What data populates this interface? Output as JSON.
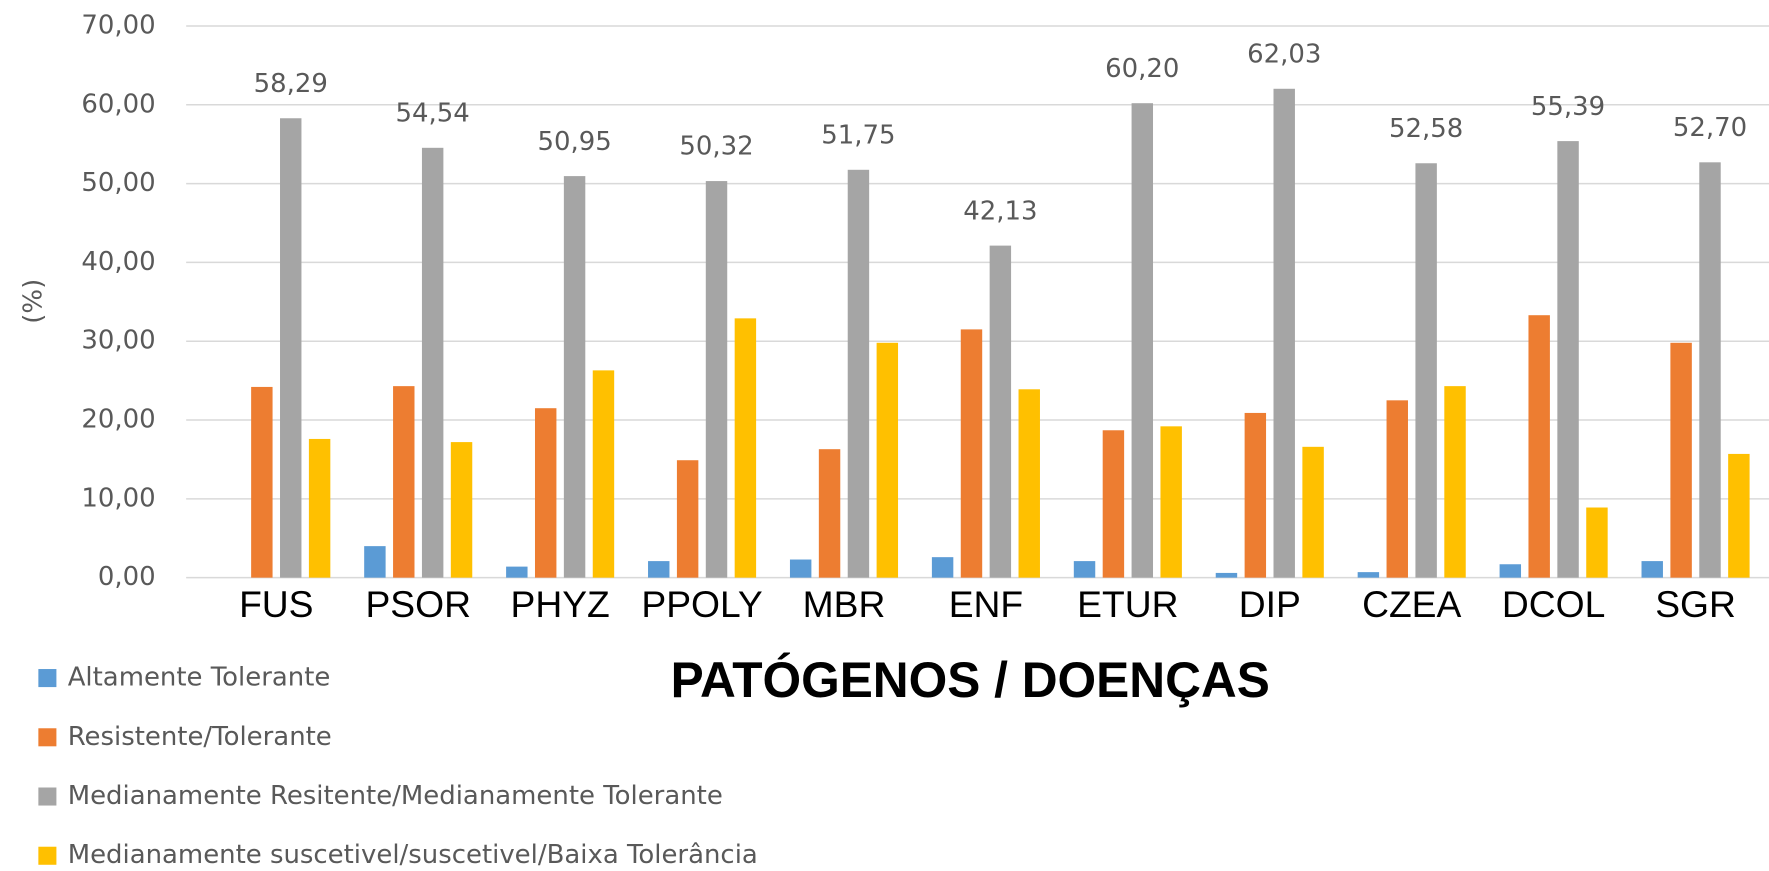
{
  "chart_data": {
    "type": "bar",
    "x_label": "PATÓGENOS / DOENÇAS",
    "y_label": "(%)",
    "categories": [
      "FUS",
      "PSOR",
      "PHYZ",
      "PPOLY",
      "MBR",
      "ENF",
      "ETUR",
      "DIP",
      "CZEA",
      "DCOL",
      "SGR"
    ],
    "series": [
      {
        "name": "Altamente Tolerante",
        "color": "#5b9bd5",
        "values": [
          0,
          4.0,
          1.4,
          2.1,
          2.3,
          2.6,
          2.1,
          0.6,
          0.7,
          1.7,
          2.1
        ]
      },
      {
        "name": "Resistente/Tolerante",
        "color": "#ed7d31",
        "values": [
          24.2,
          24.3,
          21.5,
          14.9,
          16.3,
          31.5,
          18.7,
          20.9,
          22.5,
          33.3,
          29.8
        ]
      },
      {
        "name": "Medianamente Resitente/Medianamente Tolerante",
        "color": "#a5a5a5",
        "values": [
          58.29,
          54.54,
          50.95,
          50.32,
          51.75,
          42.13,
          60.2,
          62.03,
          52.58,
          55.39,
          52.7
        ],
        "value_labels": [
          "58,29",
          "54,54",
          "50,95",
          "50,32",
          "51,75",
          "42,13",
          "60,20",
          "62,03",
          "52,58",
          "55,39",
          "52,70"
        ]
      },
      {
        "name": "Medianamente suscetivel/suscetivel/Baixa Tolerância",
        "color": "#ffc000",
        "values": [
          17.6,
          17.2,
          26.3,
          32.9,
          29.8,
          23.9,
          19.2,
          16.6,
          24.3,
          8.9,
          15.7
        ]
      }
    ],
    "ylim": [
      0,
      70
    ],
    "yticks": [
      {
        "value": 0,
        "label": "0,00"
      },
      {
        "value": 10,
        "label": "10,00"
      },
      {
        "value": 20,
        "label": "20,00"
      },
      {
        "value": 30,
        "label": "30,00"
      },
      {
        "value": 40,
        "label": "40,00"
      },
      {
        "value": 50,
        "label": "50,00"
      },
      {
        "value": 60,
        "label": "60,00"
      },
      {
        "value": 70,
        "label": "70,00"
      }
    ],
    "grid": true,
    "legend": "bottom-left"
  }
}
